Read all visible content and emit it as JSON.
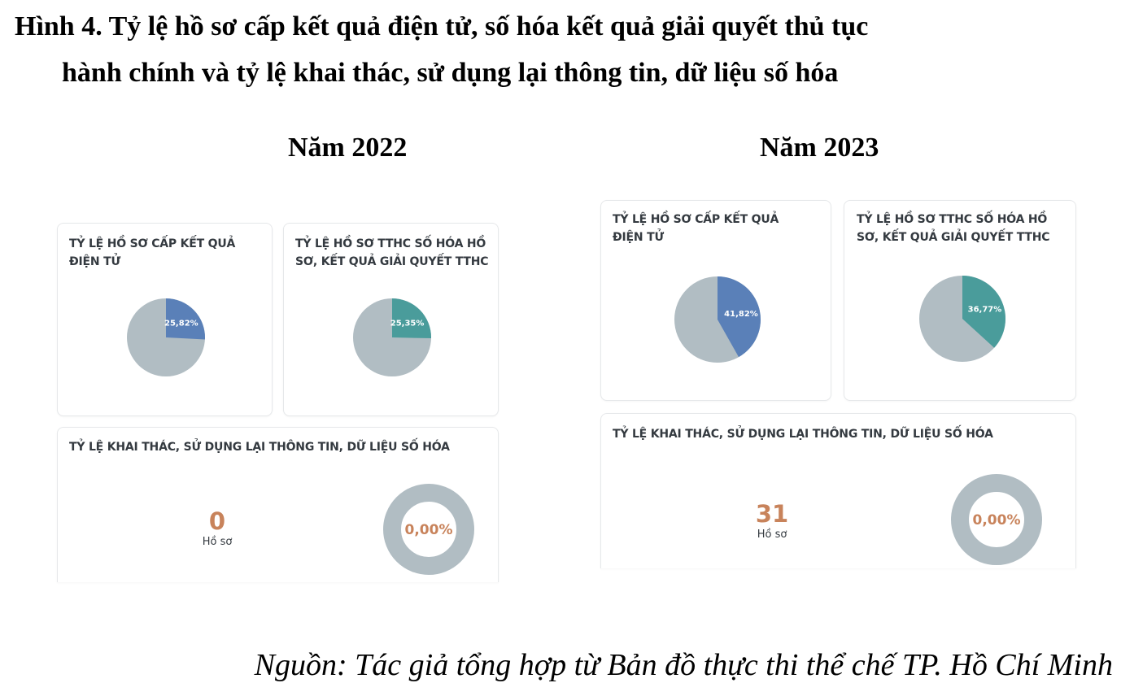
{
  "figure": {
    "title_line1": "Hình 4. Tỷ lệ hồ sơ cấp kết quả điện tử, số hóa kết quả giải quyết thủ tục",
    "title_line2": "hành chính và tỷ lệ khai thác, sử dụng lại thông tin, dữ liệu số hóa",
    "source": "Nguồn: Tác giả tổng hợp từ Bản đồ thực thi thể chế TP. Hồ Chí Minh"
  },
  "colors": {
    "electronic": "#5a80b8",
    "digitized": "#4a9c9b",
    "remainder": "#b1bdc3",
    "accent_text": "#c8835b"
  },
  "chart_data": [
    {
      "type": "pie",
      "panel": "Năm 2022",
      "title": "TỶ LỆ HỒ SƠ CẤP KẾT QUẢ ĐIỆN TỬ",
      "values": [
        25.82
      ],
      "labels": [
        "25,82%"
      ],
      "color": "#5a80b8"
    },
    {
      "type": "pie",
      "panel": "Năm 2022",
      "title": "TỶ LỆ HỒ SƠ TTHC SỐ HÓA HỒ SƠ, KẾT QUẢ GIẢI QUYẾT TTHC",
      "values": [
        25.35
      ],
      "labels": [
        "25,35%"
      ],
      "color": "#4a9c9b"
    },
    {
      "type": "pie",
      "panel": "Năm 2022",
      "title": "TỶ LỆ KHAI THÁC, SỬ DỤNG LẠI THÔNG TIN, DỮ LIỆU SỐ HÓA",
      "count": "0",
      "count_unit": "Hồ sơ",
      "values": [
        0
      ],
      "labels": [
        "0,00%"
      ]
    },
    {
      "type": "pie",
      "panel": "Năm 2023",
      "title": "TỶ LỆ HỒ SƠ CẤP KẾT QUẢ ĐIỆN TỬ",
      "values": [
        41.82
      ],
      "labels": [
        "41,82%"
      ],
      "color": "#5a80b8"
    },
    {
      "type": "pie",
      "panel": "Năm 2023",
      "title": "TỶ LỆ HỒ SƠ TTHC SỐ HÓA HỒ SƠ, KẾT QUẢ GIẢI QUYẾT TTHC",
      "values": [
        36.77
      ],
      "labels": [
        "36,77%"
      ],
      "color": "#4a9c9b"
    },
    {
      "type": "pie",
      "panel": "Năm 2023",
      "title": "TỶ LỆ KHAI THÁC, SỬ DỤNG LẠI THÔNG TIN, DỮ LIỆU SỐ HÓA",
      "count": "31",
      "count_unit": "Hồ sơ",
      "values": [
        0
      ],
      "labels": [
        "0,00%"
      ]
    }
  ],
  "panels": {
    "y2022": {
      "year_label": "Năm 2022",
      "card_electronic": {
        "title_l1": "TỶ LỆ HỒ SƠ CẤP KẾT QUẢ",
        "title_l2": "ĐIỆN TỬ",
        "value": 25.82,
        "label": "25,82%"
      },
      "card_digitized": {
        "title_l1": "TỶ LỆ HỒ SƠ TTHC SỐ HÓA HỒ",
        "title_l2": "SƠ, KẾT QUẢ GIẢI QUYẾT TTHC",
        "value": 25.35,
        "label": "25,35%"
      },
      "card_reuse": {
        "title": "TỶ LỆ KHAI THÁC, SỬ DỤNG LẠI THÔNG TIN, DỮ LIỆU SỐ HÓA",
        "count": "0",
        "count_unit": "Hồ sơ",
        "value": 0,
        "label": "0,00%"
      }
    },
    "y2023": {
      "year_label": "Năm 2023",
      "card_electronic": {
        "title_l1": "TỶ LỆ HỒ SƠ CẤP KẾT QUẢ",
        "title_l2": "ĐIỆN TỬ",
        "value": 41.82,
        "label": "41,82%"
      },
      "card_digitized": {
        "title_l1": "TỶ LỆ HỒ SƠ TTHC SỐ HÓA HỒ",
        "title_l2": "SƠ, KẾT QUẢ GIẢI QUYẾT TTHC",
        "value": 36.77,
        "label": "36,77%"
      },
      "card_reuse": {
        "title": "TỶ LỆ KHAI THÁC, SỬ DỤNG LẠI THÔNG TIN, DỮ LIỆU SỐ HÓA",
        "count": "31",
        "count_unit": "Hồ sơ",
        "value": 0,
        "label": "0,00%"
      }
    }
  }
}
